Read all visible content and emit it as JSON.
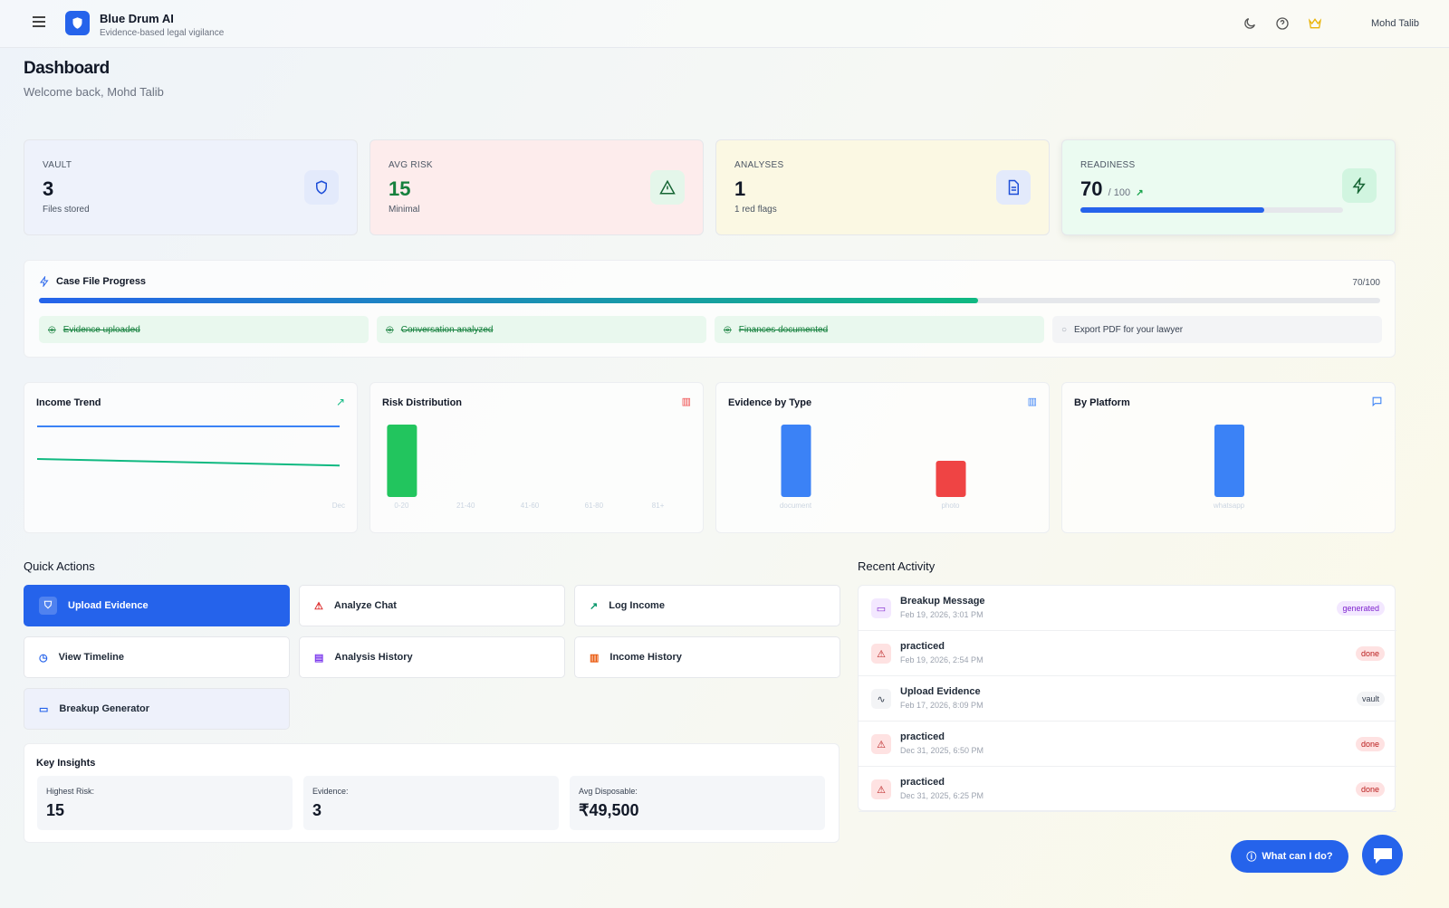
{
  "app": {
    "title": "Blue Drum AI",
    "tagline": "Evidence-based legal vigilance",
    "user": "Mohd Talib"
  },
  "page": {
    "title": "Dashboard",
    "welcome": "Welcome back, Mohd Talib"
  },
  "stats": [
    {
      "label": "VAULT",
      "value": "3",
      "sub": "Files stored",
      "icon": "shield-icon"
    },
    {
      "label": "AVG RISK",
      "value": "15",
      "sub": "Minimal",
      "icon": "warning-icon"
    },
    {
      "label": "ANALYSES",
      "value": "1",
      "sub": "1 red flags",
      "icon": "document-icon"
    },
    {
      "label": "READINESS",
      "value": "70",
      "sub": "/ 100",
      "icon": "bolt-icon",
      "progress": 70
    }
  ],
  "progress": {
    "title": "Case File Progress",
    "score": "70/100",
    "value": 70,
    "steps": [
      {
        "label": "Evidence uploaded",
        "done": true
      },
      {
        "label": "Conversation analyzed",
        "done": true
      },
      {
        "label": "Finances documented",
        "done": true
      },
      {
        "label": "Export PDF for your lawyer",
        "done": false
      }
    ]
  },
  "chart_data": [
    {
      "type": "line",
      "title": "Income Trend",
      "x": [
        "",
        "Dec"
      ],
      "series": [
        {
          "values": [
            100,
            100
          ],
          "color": "#3b82f6"
        },
        {
          "values": [
            60,
            52
          ],
          "color": "#10b981"
        }
      ]
    },
    {
      "type": "bar",
      "title": "Risk Distribution",
      "categories": [
        "0-20",
        "21-40",
        "41-60",
        "61-80",
        "81+"
      ],
      "values": [
        1,
        0,
        0,
        0,
        0
      ],
      "colors": [
        "#22c55e"
      ]
    },
    {
      "type": "bar",
      "title": "Evidence by Type",
      "categories": [
        "document",
        "photo"
      ],
      "values": [
        2,
        1
      ],
      "colors": [
        "#3b82f6",
        "#ef4444"
      ]
    },
    {
      "type": "bar",
      "title": "By Platform",
      "categories": [
        "whatsapp"
      ],
      "values": [
        1
      ],
      "colors": [
        "#3b82f6"
      ]
    }
  ],
  "quick_actions": {
    "title": "Quick Actions",
    "items": [
      "Upload Evidence",
      "Analyze Chat",
      "Log Income",
      "View Timeline",
      "Analysis History",
      "Income History",
      "Breakup Generator"
    ]
  },
  "insights": {
    "title": "Key Insights",
    "items": [
      {
        "label": "Highest Risk:",
        "value": "15"
      },
      {
        "label": "Evidence:",
        "value": "3"
      },
      {
        "label": "Avg Disposable:",
        "value": "₹49,500"
      }
    ]
  },
  "activity": {
    "title": "Recent Activity",
    "items": [
      {
        "title": "Breakup Message",
        "date": "Feb 19, 2026, 3:01 PM",
        "badge": "generated"
      },
      {
        "title": "practiced",
        "date": "Feb 19, 2026, 2:54 PM",
        "badge": "done"
      },
      {
        "title": "Upload Evidence",
        "date": "Feb 17, 2026, 8:09 PM",
        "badge": "vault"
      },
      {
        "title": "practiced",
        "date": "Dec 31, 2025, 6:50 PM",
        "badge": "done"
      },
      {
        "title": "practiced",
        "date": "Dec 31, 2025, 6:25 PM",
        "badge": "done"
      }
    ]
  },
  "help": {
    "label": "What can I do?"
  }
}
